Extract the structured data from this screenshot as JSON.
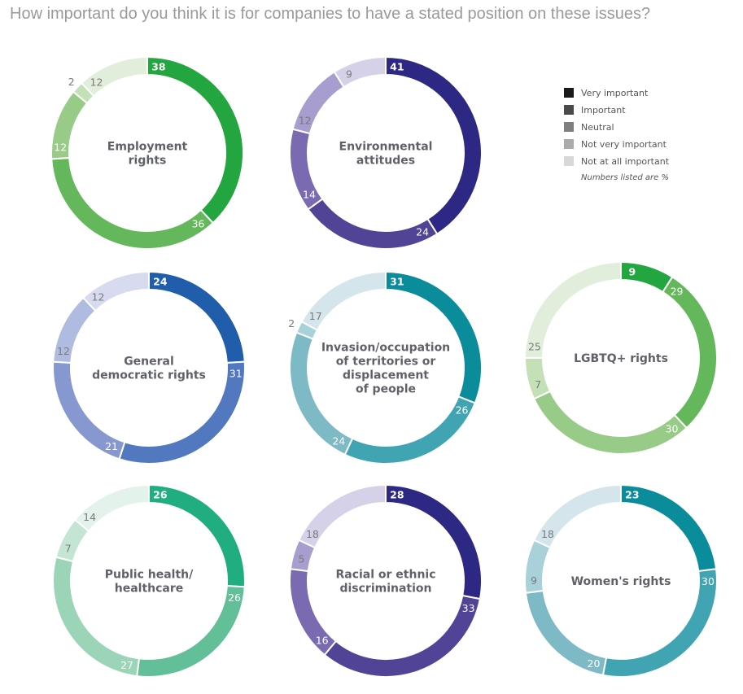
{
  "title": "How important do you think it is for companies to have a stated position on these issues?",
  "chart_data": {
    "type": "pie",
    "subtype": "donut",
    "title": "How important do you think it is for companies to have a stated position on these issues?",
    "categories": [
      "Very important",
      "Important",
      "Neutral",
      "Not very important",
      "Not at all important"
    ],
    "legend": {
      "position": "top-right",
      "items": [
        {
          "label": "Very important",
          "color": "#1a1a1a"
        },
        {
          "label": "Important",
          "color": "#4a4a4a"
        },
        {
          "label": "Neutral",
          "color": "#7f7f7f"
        },
        {
          "label": "Not very important",
          "color": "#ababab"
        },
        {
          "label": "Not at all important",
          "color": "#d8d8d8"
        }
      ],
      "note": "Numbers listed are %"
    },
    "charts": [
      {
        "name": [
          "Employment",
          "rights"
        ],
        "values": [
          38,
          36,
          12,
          2,
          12
        ],
        "colors": [
          "#23a63f",
          "#64b75a",
          "#97cb87",
          "#c3e0b7",
          "#e1eedb"
        ]
      },
      {
        "name": [
          "Environmental",
          "attitudes"
        ],
        "values": [
          41,
          24,
          14,
          12,
          9
        ],
        "colors": [
          "#2e2885",
          "#514497",
          "#7a6ab1",
          "#a79dce",
          "#d4d1e8"
        ]
      },
      {
        "name": [
          "General",
          "democratic rights"
        ],
        "values": [
          24,
          31,
          21,
          12,
          12
        ],
        "colors": [
          "#205eab",
          "#5279c0",
          "#8797d0",
          "#afbbe0",
          "#d6dbf0"
        ]
      },
      {
        "name": [
          "Invasion/occupation",
          "of territories or",
          "displacement",
          "of people"
        ],
        "values": [
          31,
          26,
          24,
          2,
          17
        ],
        "colors": [
          "#0b8c9a",
          "#41a4b2",
          "#7ebac5",
          "#a8d1da",
          "#d4e6ec"
        ]
      },
      {
        "name": [
          "LGBTQ+ rights"
        ],
        "values": [
          9,
          29,
          30,
          7,
          25
        ],
        "colors": [
          "#23a63f",
          "#64b75a",
          "#97cb87",
          "#c3e0b7",
          "#e1eedb"
        ]
      },
      {
        "name": [
          "Public health/",
          "healthcare"
        ],
        "values": [
          26,
          26,
          27,
          7,
          14
        ],
        "colors": [
          "#20ae80",
          "#62bf98",
          "#9bd4b6",
          "#c4e5d3",
          "#e3f2ea"
        ]
      },
      {
        "name": [
          "Racial or ethnic",
          "discrimination"
        ],
        "values": [
          28,
          33,
          16,
          5,
          18
        ],
        "colors": [
          "#2e2885",
          "#514497",
          "#7a6ab1",
          "#a79dce",
          "#d4d1e8"
        ]
      },
      {
        "name": [
          "Women's rights"
        ],
        "values": [
          23,
          30,
          20,
          9,
          18
        ],
        "colors": [
          "#0b8c9a",
          "#41a4b2",
          "#7ebac5",
          "#a8d1da",
          "#d4e6ec"
        ]
      }
    ]
  }
}
